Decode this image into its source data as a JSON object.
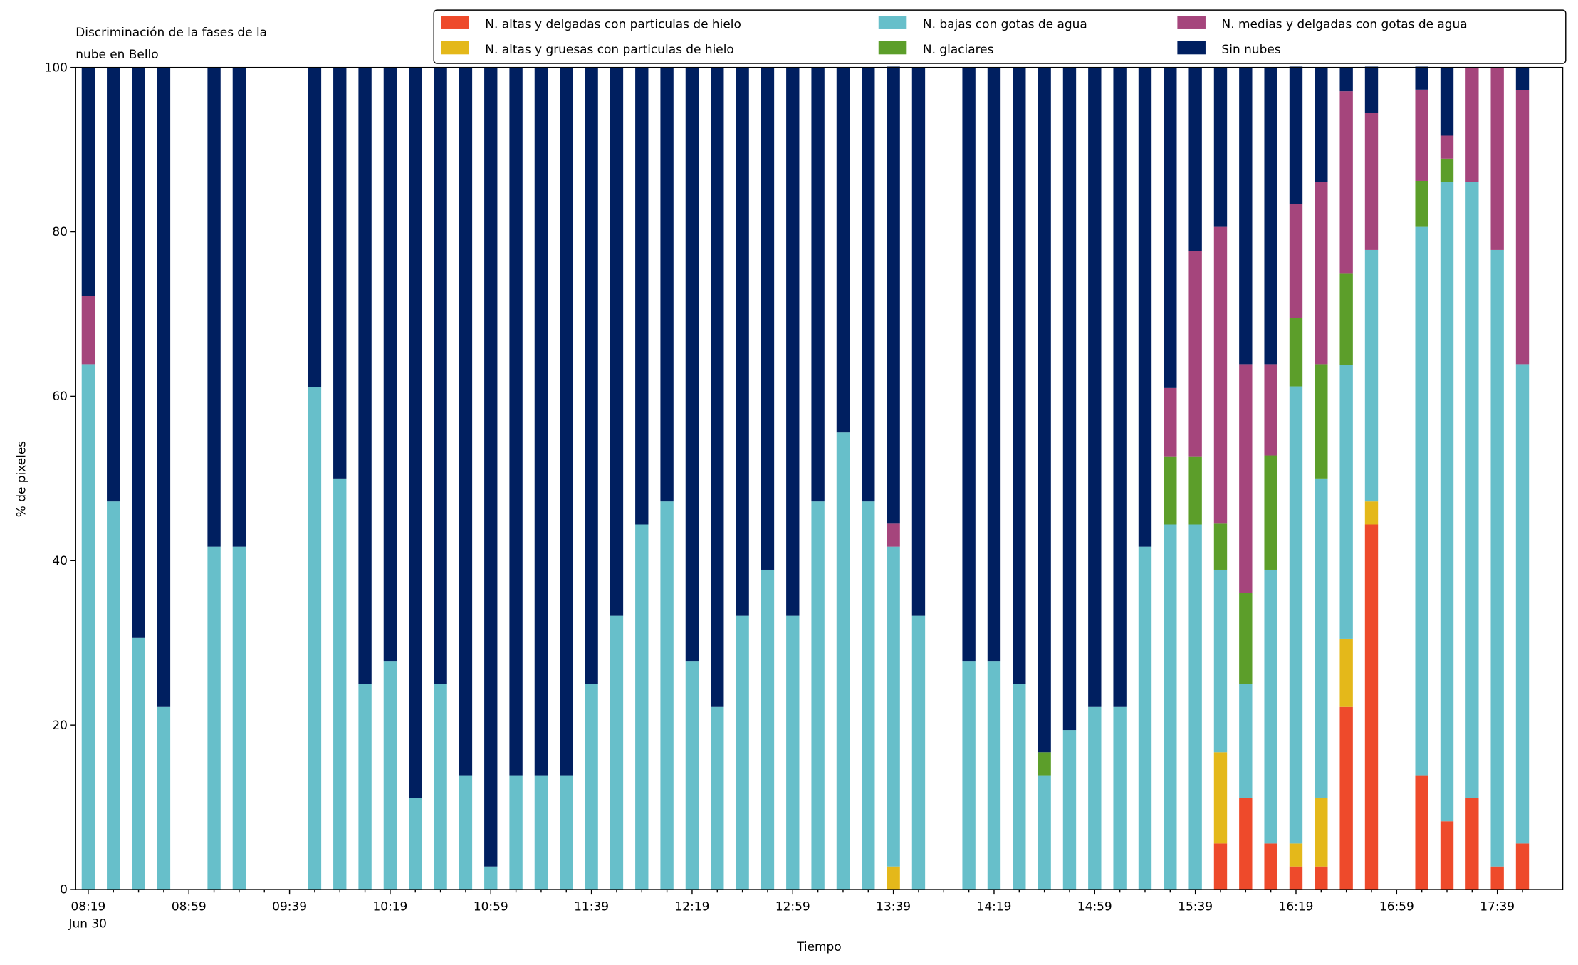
{
  "chart_data": {
    "type": "stacked_bar",
    "title": [
      "Discriminación de la fases de la",
      "nube en Bello"
    ],
    "xlabel": "Tiempo",
    "ylabel": "% de pixeles",
    "x_sublabel": "Jun 30",
    "categories": [
      "08:19",
      null,
      null,
      null,
      "08:59",
      null,
      null,
      null,
      "09:39",
      null,
      null,
      null,
      "10:19",
      null,
      null,
      null,
      "10:59",
      null,
      null,
      null,
      "11:39",
      null,
      null,
      null,
      "12:19",
      null,
      null,
      null,
      "12:59",
      null,
      null,
      null,
      "13:39",
      null,
      null,
      null,
      "14:19",
      null,
      null,
      null,
      "14:59",
      null,
      null,
      null,
      "15:39",
      null,
      null,
      null,
      "16:19",
      null,
      null,
      null,
      "16:59",
      null,
      null,
      null,
      "17:39",
      null
    ],
    "ylim": [
      0,
      100
    ],
    "yticks": [
      0,
      20,
      40,
      60,
      80,
      100
    ],
    "series": [
      {
        "name": "N. altas y delgadas con particulas de hielo",
        "color": "#ee4a2b",
        "values": [
          0,
          0,
          0,
          0,
          null,
          0,
          0,
          null,
          null,
          0,
          0,
          0,
          0,
          0,
          0,
          0,
          0,
          0,
          0,
          0,
          0,
          0,
          0,
          0,
          0,
          0,
          0,
          0,
          0,
          0,
          0,
          0,
          0,
          0,
          null,
          0,
          0,
          0,
          0,
          0,
          0,
          0,
          0,
          0,
          0,
          5.6,
          11.1,
          5.6,
          2.8,
          2.8,
          22.2,
          44.4,
          null,
          13.9,
          8.3,
          11.1,
          2.8,
          5.6
        ]
      },
      {
        "name": "N. altas y gruesas con particulas de hielo",
        "color": "#e4b81a",
        "values": [
          0,
          0,
          0,
          0,
          null,
          0,
          0,
          null,
          null,
          0,
          0,
          0,
          0,
          0,
          0,
          0,
          0,
          0,
          0,
          0,
          0,
          0,
          0,
          0,
          0,
          0,
          0,
          0,
          0,
          0,
          0,
          0,
          2.8,
          0,
          null,
          0,
          0,
          0,
          0,
          0,
          0,
          0,
          0,
          0,
          0,
          11.1,
          0,
          0,
          2.8,
          8.3,
          8.3,
          2.8,
          null,
          0,
          0,
          0,
          0,
          0
        ]
      },
      {
        "name": "N. bajas con gotas de agua",
        "color": "#67bfca",
        "values": [
          63.9,
          47.2,
          30.6,
          22.2,
          null,
          41.7,
          41.7,
          null,
          null,
          61.1,
          50,
          25,
          27.8,
          11.1,
          25,
          13.9,
          2.8,
          13.9,
          13.9,
          13.9,
          25,
          33.3,
          44.4,
          47.2,
          27.8,
          22.2,
          33.3,
          38.9,
          33.3,
          47.2,
          55.6,
          47.2,
          38.9,
          33.3,
          null,
          27.8,
          27.8,
          25,
          13.9,
          19.4,
          22.2,
          22.2,
          41.7,
          44.4,
          44.4,
          22.2,
          13.9,
          33.3,
          55.6,
          38.9,
          33.3,
          30.6,
          null,
          66.7,
          77.8,
          75,
          75,
          58.3
        ]
      },
      {
        "name": "N. glaciares",
        "color": "#5c9e2a",
        "values": [
          0,
          0,
          0,
          0,
          null,
          0,
          0,
          null,
          null,
          0,
          0,
          0,
          0,
          0,
          0,
          0,
          0,
          0,
          0,
          0,
          0,
          0,
          0,
          0,
          0,
          0,
          0,
          0,
          0,
          0,
          0,
          0,
          0,
          0,
          null,
          0,
          0,
          0,
          2.8,
          0,
          0,
          0,
          0,
          8.3,
          8.3,
          5.6,
          11.1,
          13.9,
          8.3,
          13.9,
          11.1,
          0,
          null,
          5.6,
          2.8,
          0,
          0,
          0
        ]
      },
      {
        "name": "N. medias y delgadas con gotas de agua",
        "color": "#a5457c",
        "values": [
          8.3,
          0,
          0,
          0,
          null,
          0,
          0,
          null,
          null,
          0,
          0,
          0,
          0,
          0,
          0,
          0,
          0,
          0,
          0,
          0,
          0,
          0,
          0,
          0,
          0,
          0,
          0,
          0,
          0,
          0,
          0,
          0,
          2.8,
          0,
          null,
          0,
          0,
          0,
          0,
          0,
          0,
          0,
          0,
          8.3,
          25,
          36.1,
          27.8,
          11.1,
          13.9,
          22.2,
          22.2,
          16.7,
          null,
          11.1,
          2.8,
          13.9,
          22.2,
          33.3
        ]
      },
      {
        "name": "Sin nubes",
        "color": "#001f60",
        "values": [
          27.8,
          52.8,
          69.4,
          77.8,
          null,
          58.3,
          58.3,
          null,
          null,
          38.9,
          50,
          75,
          72.2,
          88.9,
          75,
          86.1,
          97.2,
          86.1,
          86.1,
          86.1,
          75,
          66.7,
          55.6,
          52.8,
          72.2,
          77.8,
          66.7,
          61.1,
          66.7,
          52.8,
          44.4,
          52.8,
          55.6,
          66.7,
          null,
          72.2,
          72.2,
          75,
          83.3,
          80.6,
          77.8,
          77.8,
          58.3,
          38.9,
          22.2,
          19.4,
          36.1,
          36.1,
          16.7,
          13.9,
          2.8,
          5.6,
          null,
          2.8,
          8.3,
          0,
          0,
          2.8
        ]
      }
    ]
  }
}
